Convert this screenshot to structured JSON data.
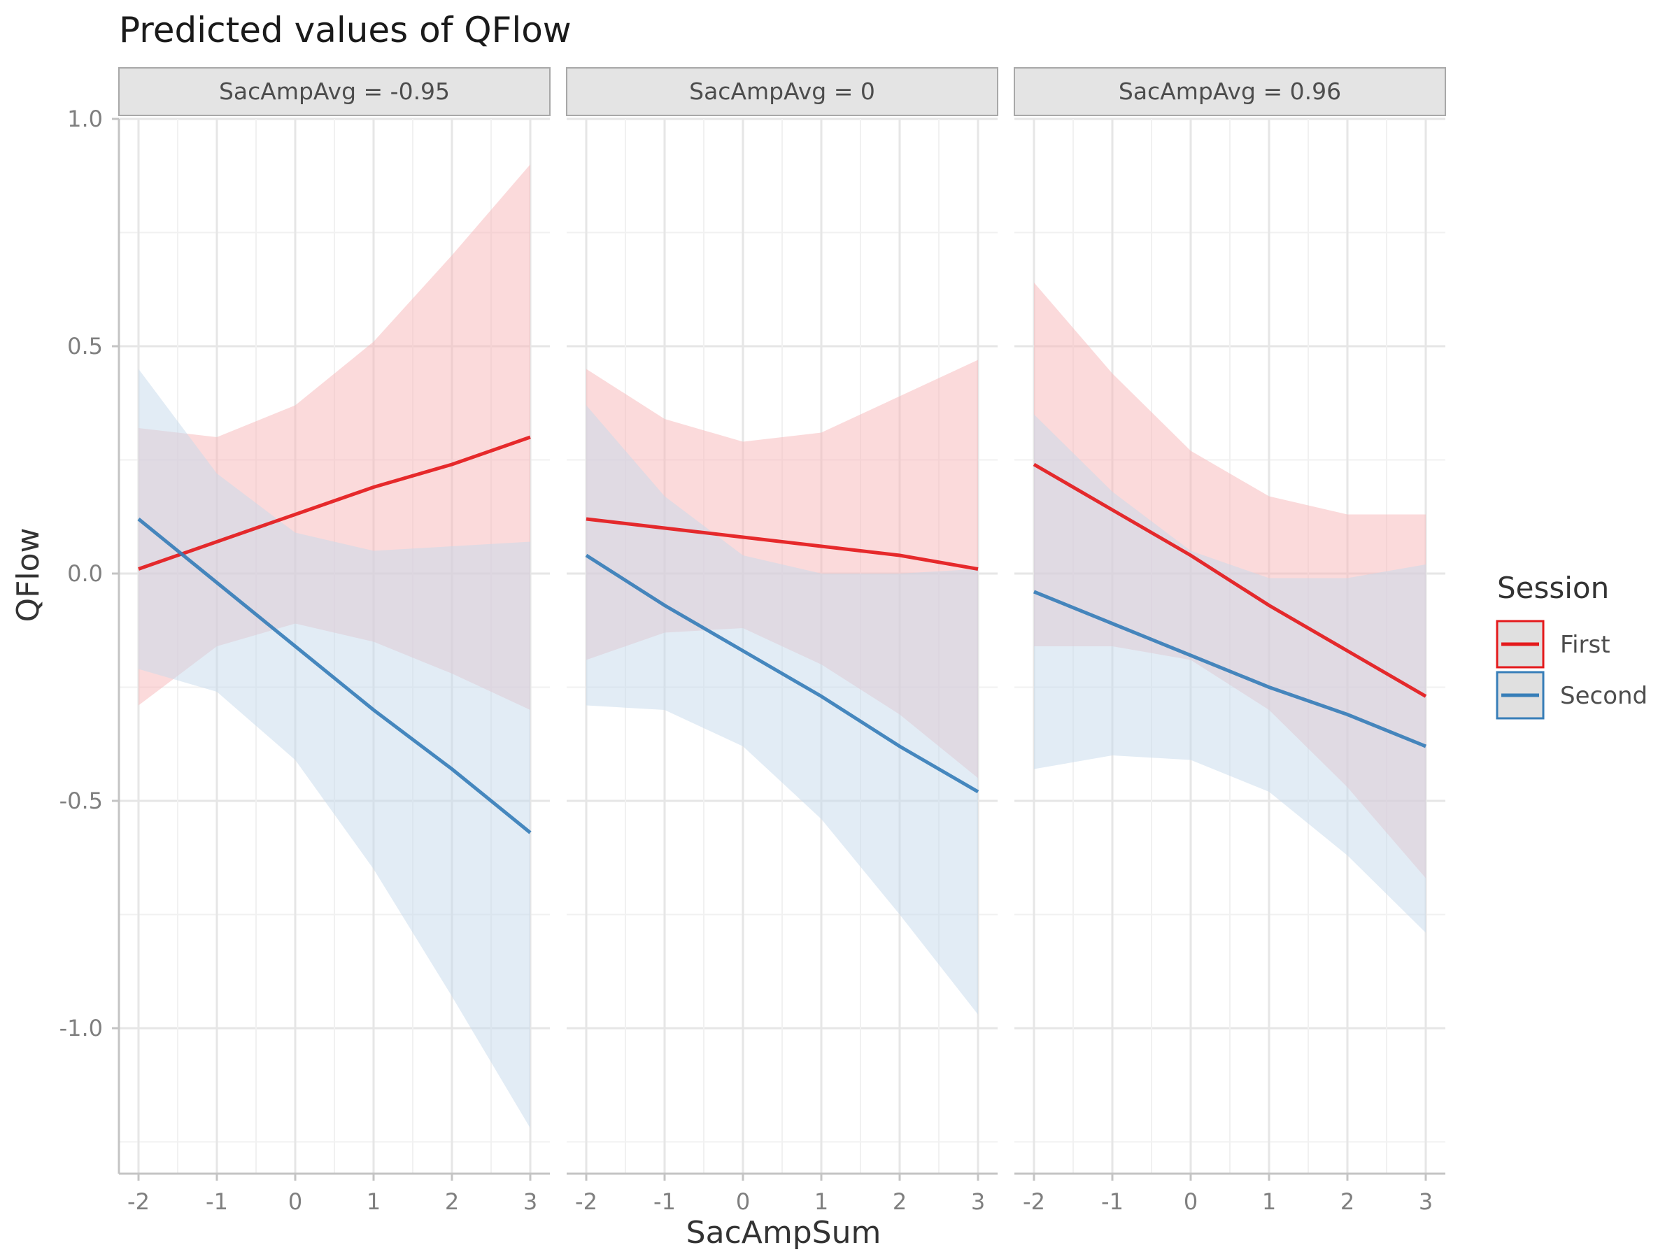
{
  "chart_data": {
    "type": "line",
    "title": "Predicted values of QFlow",
    "xlabel": "SacAmpSum",
    "ylabel": "QFlow",
    "x": [
      -2,
      -1,
      0,
      1,
      2,
      3
    ],
    "x_tick_labels": [
      "-2",
      "-1",
      "0",
      "1",
      "2",
      "3"
    ],
    "xlim": [
      -2.25,
      3.25
    ],
    "ylim": [
      -1.32,
      1.0
    ],
    "y_ticks": [
      1.0,
      0.5,
      0.0,
      -0.5,
      -1.0
    ],
    "y_tick_labels": [
      "1.0",
      "0.5",
      "0.0",
      "-0.5",
      "-1.0"
    ],
    "grid": true,
    "legend": {
      "title": "Session",
      "position": "right",
      "items": [
        "First",
        "Second"
      ]
    },
    "colors": {
      "First": "#e41a1c",
      "Second": "#377eb8",
      "First_band": "#f8b5b8",
      "Second_band": "#c6daec"
    },
    "panels": [
      {
        "label": "SacAmpAvg = -0.95",
        "series": [
          {
            "name": "First",
            "values": [
              0.01,
              0.07,
              0.13,
              0.19,
              0.24,
              0.3
            ],
            "lower": [
              -0.29,
              -0.16,
              -0.11,
              -0.15,
              -0.22,
              -0.3
            ],
            "upper": [
              0.32,
              0.3,
              0.37,
              0.51,
              0.7,
              0.9
            ]
          },
          {
            "name": "Second",
            "values": [
              0.12,
              -0.02,
              -0.16,
              -0.3,
              -0.43,
              -0.57
            ],
            "lower": [
              -0.21,
              -0.26,
              -0.41,
              -0.65,
              -0.93,
              -1.22
            ],
            "upper": [
              0.45,
              0.22,
              0.09,
              0.05,
              0.06,
              0.07
            ]
          }
        ]
      },
      {
        "label": "SacAmpAvg = 0",
        "series": [
          {
            "name": "First",
            "values": [
              0.12,
              0.1,
              0.08,
              0.06,
              0.04,
              0.01
            ],
            "lower": [
              -0.19,
              -0.13,
              -0.12,
              -0.2,
              -0.31,
              -0.45
            ],
            "upper": [
              0.45,
              0.34,
              0.29,
              0.31,
              0.39,
              0.47
            ]
          },
          {
            "name": "Second",
            "values": [
              0.04,
              -0.07,
              -0.17,
              -0.27,
              -0.38,
              -0.48
            ],
            "lower": [
              -0.29,
              -0.3,
              -0.38,
              -0.54,
              -0.75,
              -0.97
            ],
            "upper": [
              0.37,
              0.17,
              0.04,
              0.0,
              0.0,
              0.01
            ]
          }
        ]
      },
      {
        "label": "SacAmpAvg = 0.96",
        "series": [
          {
            "name": "First",
            "values": [
              0.24,
              0.14,
              0.04,
              -0.07,
              -0.17,
              -0.27
            ],
            "lower": [
              -0.16,
              -0.16,
              -0.19,
              -0.3,
              -0.47,
              -0.67
            ],
            "upper": [
              0.64,
              0.44,
              0.27,
              0.17,
              0.13,
              0.13
            ]
          },
          {
            "name": "Second",
            "values": [
              -0.04,
              -0.11,
              -0.18,
              -0.25,
              -0.31,
              -0.38
            ],
            "lower": [
              -0.43,
              -0.4,
              -0.41,
              -0.48,
              -0.62,
              -0.79
            ],
            "upper": [
              0.35,
              0.18,
              0.05,
              -0.01,
              -0.01,
              0.02
            ]
          }
        ]
      }
    ]
  }
}
